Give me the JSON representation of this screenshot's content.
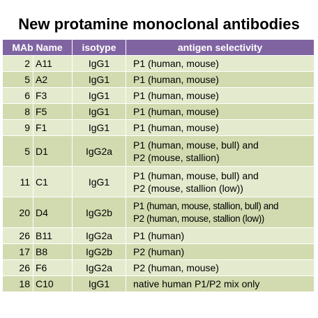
{
  "title": "New protamine monoclonal antibodies",
  "columns": [
    "MAb Name",
    "isotype",
    "antigen selectivity"
  ],
  "rows": [
    {
      "num": "2",
      "code": "A11",
      "isotype": "IgG1",
      "selectivity": [
        "P1 (human, mouse)"
      ]
    },
    {
      "num": "5",
      "code": "A2",
      "isotype": "IgG1",
      "selectivity": [
        "P1 (human, mouse)"
      ]
    },
    {
      "num": "6",
      "code": "F3",
      "isotype": "IgG1",
      "selectivity": [
        "P1 (human, mouse)"
      ]
    },
    {
      "num": "8",
      "code": "F5",
      "isotype": "IgG1",
      "selectivity": [
        "P1 (human, mouse)"
      ]
    },
    {
      "num": "9",
      "code": "F1",
      "isotype": "IgG1",
      "selectivity": [
        "P1 (human, mouse)"
      ]
    },
    {
      "num": "5",
      "code": "D1",
      "isotype": "IgG2a",
      "selectivity": [
        "P1 (human, mouse, bull) and",
        "P2 (mouse, stallion)"
      ]
    },
    {
      "num": "11",
      "code": "C1",
      "isotype": "IgG1",
      "selectivity": [
        "P1 (human, mouse, bull) and",
        "P2 (mouse, stallion (low))"
      ]
    },
    {
      "num": "20",
      "code": "D4",
      "isotype": "IgG2b",
      "selectivity": [
        "P1 (human, mouse, stallion, bull) and",
        "P2 (human, mouse, stallion (low))"
      ]
    },
    {
      "num": "26",
      "code": "B11",
      "isotype": "IgG2a",
      "selectivity": [
        "P1 (human)"
      ]
    },
    {
      "num": "17",
      "code": "B8",
      "isotype": "IgG2b",
      "selectivity": [
        "P2 (human)"
      ]
    },
    {
      "num": "26",
      "code": "F6",
      "isotype": "IgG2a",
      "selectivity": [
        "P2 (human, mouse)"
      ]
    },
    {
      "num": "18",
      "code": "C10",
      "isotype": "IgG1",
      "selectivity": [
        "native human P1/P2 mix only"
      ]
    }
  ]
}
